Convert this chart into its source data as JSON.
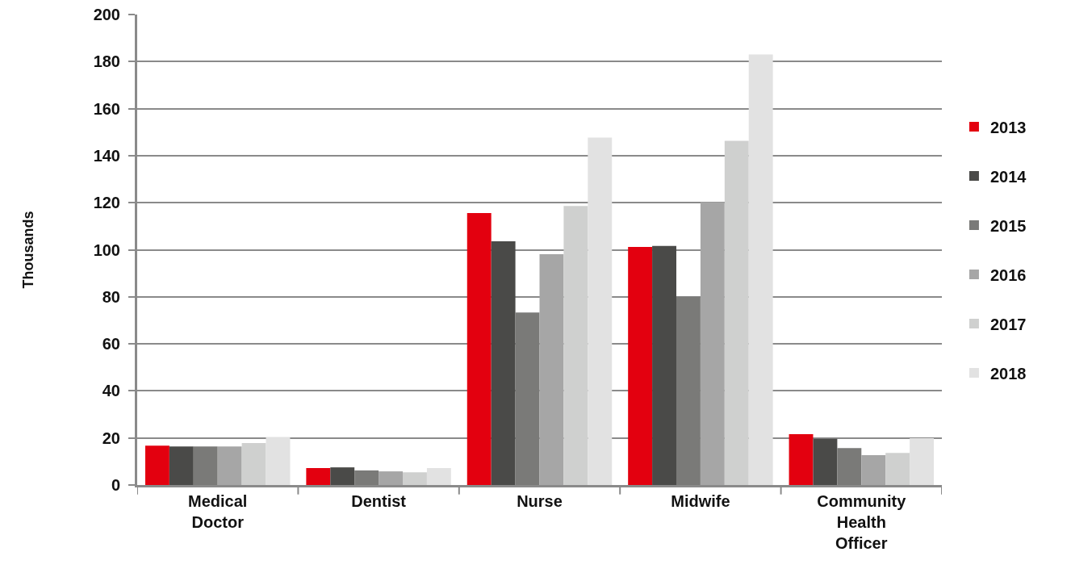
{
  "chart_data": {
    "type": "bar",
    "ylabel": "Thousands",
    "categories": [
      "Medical Doctor",
      "Dentist",
      "Nurse",
      "Midwife",
      "Community Health Officer"
    ],
    "series": [
      {
        "name": "2013",
        "color": "#e3000f",
        "values": [
          16.7,
          7.2,
          115.6,
          101.2,
          21.6
        ]
      },
      {
        "name": "2014",
        "color": "#4a4a48",
        "values": [
          16.4,
          7.5,
          103.6,
          101.6,
          19.6
        ]
      },
      {
        "name": "2015",
        "color": "#7a7a78",
        "values": [
          16.4,
          6.2,
          73.3,
          80,
          15.7
        ]
      },
      {
        "name": "2016",
        "color": "#a6a6a6",
        "values": [
          16.4,
          5.8,
          98.1,
          120.2,
          12.7
        ]
      },
      {
        "name": "2017",
        "color": "#cfd0cf",
        "values": [
          17.8,
          5.4,
          118.6,
          146.3,
          13.6
        ]
      },
      {
        "name": "2018",
        "color": "#e2e2e2",
        "values": [
          20.4,
          7.2,
          147.7,
          183,
          19.9
        ]
      }
    ],
    "ylim": [
      0,
      200
    ],
    "yticks": [
      0,
      20,
      40,
      60,
      80,
      100,
      120,
      140,
      160,
      180,
      200
    ],
    "grid": "y",
    "legend": "right"
  }
}
